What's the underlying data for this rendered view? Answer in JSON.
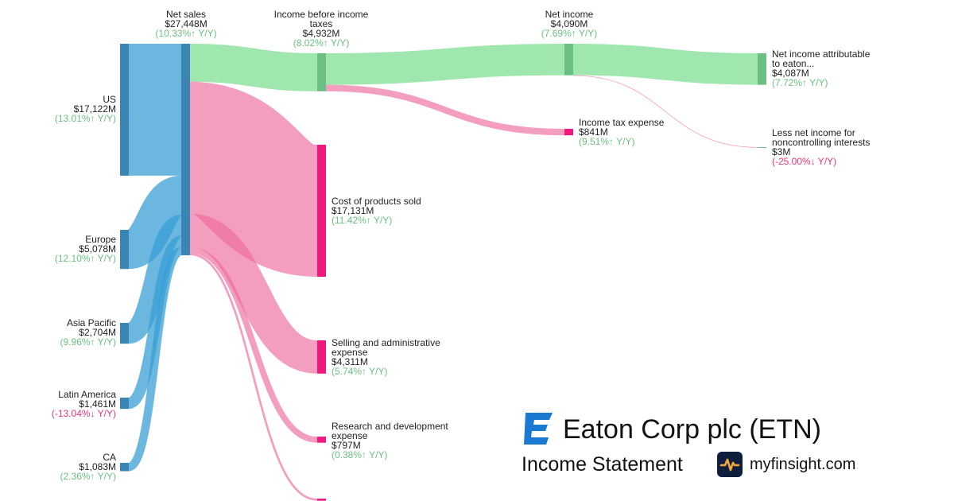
{
  "chart_data": {
    "type": "sankey",
    "unit": "$M",
    "nodes": [
      {
        "id": "us",
        "name": "US",
        "value": "$17,122M",
        "change": "(13.01%↑ Y/Y)",
        "trend": "up",
        "color": "#3a85b3"
      },
      {
        "id": "europe",
        "name": "Europe",
        "value": "$5,078M",
        "change": "(12.10%↑ Y/Y)",
        "trend": "up",
        "color": "#3a85b3"
      },
      {
        "id": "asia",
        "name": "Asia Pacific",
        "value": "$2,704M",
        "change": "(9.96%↑ Y/Y)",
        "trend": "up",
        "color": "#3a85b3"
      },
      {
        "id": "latam",
        "name": "Latin America",
        "value": "$1,461M",
        "change": "(-13.04%↓ Y/Y)",
        "trend": "down",
        "color": "#3a85b3"
      },
      {
        "id": "ca",
        "name": "CA",
        "value": "$1,083M",
        "change": "(2.36%↑ Y/Y)",
        "trend": "up",
        "color": "#3a85b3"
      },
      {
        "id": "netsales",
        "name": "Net sales",
        "value": "$27,448M",
        "change": "(10.33%↑ Y/Y)",
        "trend": "up",
        "color": "#3a85b3"
      },
      {
        "id": "ibt",
        "name": "Income before income taxes",
        "value": "$4,932M",
        "change": "(8.02%↑ Y/Y)",
        "trend": "up",
        "color": "#6cbf84"
      },
      {
        "id": "cogs",
        "name": "Cost of products sold",
        "value": "$17,131M",
        "change": "(11.42%↑ Y/Y)",
        "trend": "up",
        "color": "#f0197d"
      },
      {
        "id": "sga",
        "name": "Selling and administrative expense",
        "value": "$4,311M",
        "change": "(5.74%↑ Y/Y)",
        "trend": "up",
        "color": "#f0197d"
      },
      {
        "id": "rnd",
        "name": "Research and development expense",
        "value": "$797M",
        "change": "(0.38%↑ Y/Y)",
        "trend": "up",
        "color": "#f0197d"
      },
      {
        "id": "netincome",
        "name": "Net income",
        "value": "$4,090M",
        "change": "(7.69%↑ Y/Y)",
        "trend": "up",
        "color": "#6cbf84"
      },
      {
        "id": "tax",
        "name": "Income tax expense",
        "value": "$841M",
        "change": "(9.51%↑ Y/Y)",
        "trend": "up",
        "color": "#f0197d"
      },
      {
        "id": "attrib",
        "name": "Net income attributable to eaton...",
        "value": "$4,087M",
        "change": "(7.72%↑ Y/Y)",
        "trend": "up",
        "color": "#6cbf84"
      },
      {
        "id": "nci",
        "name": "Less net income for noncontrolling interests",
        "value": "$3M",
        "change": "(-25.00%↓ Y/Y)",
        "trend": "down",
        "color": "#6cbf84"
      },
      {
        "id": "other",
        "name": "",
        "value": "",
        "change": "",
        "trend": "up",
        "color": "#f0197d"
      }
    ],
    "links": [
      {
        "source": "us",
        "target": "netsales",
        "value": 17122,
        "color": "#3a9fd6"
      },
      {
        "source": "europe",
        "target": "netsales",
        "value": 5078,
        "color": "#3a9fd6"
      },
      {
        "source": "asia",
        "target": "netsales",
        "value": 2704,
        "color": "#3a9fd6"
      },
      {
        "source": "latam",
        "target": "netsales",
        "value": 1461,
        "color": "#3a9fd6"
      },
      {
        "source": "ca",
        "target": "netsales",
        "value": 1083,
        "color": "#3a9fd6"
      },
      {
        "source": "netsales",
        "target": "ibt",
        "value": 4932,
        "color": "#5fd67a"
      },
      {
        "source": "netsales",
        "target": "cogs",
        "value": 17131,
        "color": "#ee6a9c"
      },
      {
        "source": "netsales",
        "target": "sga",
        "value": 4311,
        "color": "#ee6a9c"
      },
      {
        "source": "netsales",
        "target": "rnd",
        "value": 797,
        "color": "#ee6a9c"
      },
      {
        "source": "netsales",
        "target": "other",
        "value": 277,
        "color": "#ee6a9c"
      },
      {
        "source": "ibt",
        "target": "netincome",
        "value": 4090,
        "color": "#5fd67a"
      },
      {
        "source": "ibt",
        "target": "tax",
        "value": 841,
        "color": "#ee6a9c"
      },
      {
        "source": "netincome",
        "target": "attrib",
        "value": 4087,
        "color": "#5fd67a"
      },
      {
        "source": "netincome",
        "target": "nci",
        "value": 3,
        "color": "#ee6a9c"
      }
    ]
  },
  "brand": {
    "company": "Eaton Corp plc (ETN)",
    "subtitle": "Income Statement",
    "site": "myfinsight.com",
    "logo_icon": "eaton-e-logo-icon",
    "badge_icon": "pulse-icon",
    "logo_color": "#1a7ad1"
  }
}
